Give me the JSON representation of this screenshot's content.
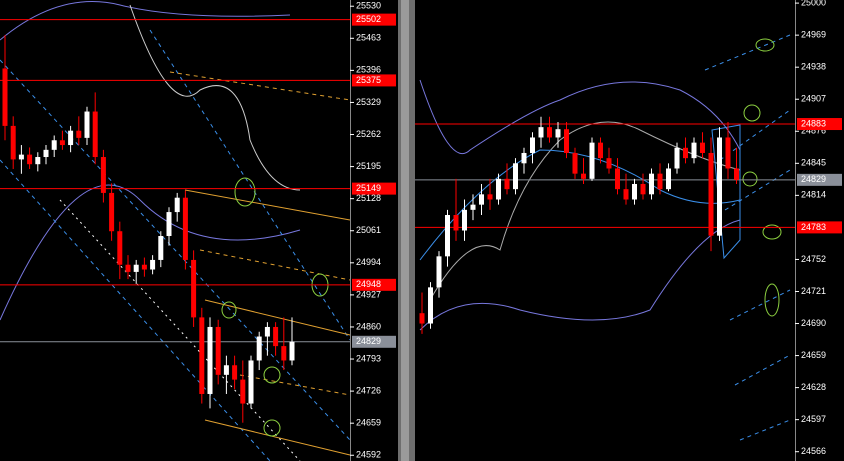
{
  "chart_data": [
    {
      "type": "candlestick",
      "up_color": "#ffffff",
      "down_color": "#ff0000",
      "ylim": [
        24580,
        25543
      ],
      "yticks": [
        25530,
        25463,
        25396,
        25329,
        25262,
        25195,
        25128,
        25061,
        24994,
        24927,
        24860,
        24793,
        24726,
        24659,
        24592
      ],
      "open": [
        25400,
        25280,
        25210,
        25220,
        25200,
        25215,
        25230,
        25250,
        25240,
        25270,
        25255,
        25310,
        25215,
        25140,
        25060,
        24990,
        24975,
        24990,
        24980,
        25000,
        25050,
        25100,
        25130,
        25000,
        24880,
        24720,
        24860,
        24760,
        24780,
        24750,
        24700,
        24790,
        24840,
        24860,
        24820,
        24790
      ],
      "high": [
        25470,
        25300,
        25240,
        25235,
        25225,
        25240,
        25260,
        25270,
        25280,
        25300,
        25320,
        25350,
        25230,
        25160,
        25080,
        25010,
        25000,
        25005,
        25010,
        25060,
        25110,
        25140,
        25145,
        25020,
        24900,
        24880,
        24875,
        24800,
        24800,
        24790,
        24800,
        24850,
        24870,
        24870,
        24880,
        24880
      ],
      "low": [
        25250,
        25190,
        25180,
        25190,
        25185,
        25200,
        25215,
        25230,
        25225,
        25240,
        25240,
        25200,
        25120,
        25040,
        24960,
        24960,
        24950,
        24965,
        24970,
        24985,
        25030,
        25080,
        24980,
        24860,
        24700,
        24690,
        24740,
        24720,
        24730,
        24660,
        24690,
        24770,
        24800,
        24800,
        24770,
        24780
      ],
      "close": [
        25280,
        25210,
        25220,
        25200,
        25215,
        25230,
        25250,
        25240,
        25270,
        25255,
        25310,
        25215,
        25140,
        25060,
        24990,
        24975,
        24990,
        24980,
        25000,
        25050,
        25100,
        25130,
        25000,
        24880,
        24720,
        24860,
        24760,
        24780,
        24750,
        24700,
        24790,
        24840,
        24860,
        24820,
        24790,
        24829
      ],
      "levels": [
        {
          "value": 25502,
          "color": "#ff0000"
        },
        {
          "value": 25375,
          "color": "#ff0000"
        },
        {
          "value": 25149,
          "color": "#ff0000"
        },
        {
          "value": 24948,
          "color": "#ff0000"
        },
        {
          "value": 24829,
          "color": "#8a8f99"
        }
      ]
    },
    {
      "type": "candlestick",
      "up_color": "#ffffff",
      "down_color": "#ff0000",
      "ylim": [
        24557,
        25003
      ],
      "yticks": [
        25000,
        24969,
        24938,
        24907,
        24876,
        24845,
        24814,
        24752,
        24721,
        24690,
        24659,
        24628,
        24597,
        24566
      ],
      "open": [
        24700,
        24690,
        24725,
        24755,
        24795,
        24780,
        24800,
        24805,
        24815,
        24810,
        24830,
        24820,
        24845,
        24855,
        24870,
        24880,
        24870,
        24878,
        24855,
        24835,
        24830,
        24865,
        24850,
        24840,
        24820,
        24810,
        24825,
        24815,
        24835,
        24820,
        24840,
        24860,
        24850,
        24865,
        24855,
        24775,
        24870,
        24840
      ],
      "high": [
        24720,
        24730,
        24760,
        24800,
        24830,
        24810,
        24815,
        24825,
        24830,
        24835,
        24845,
        24850,
        24860,
        24875,
        24890,
        24890,
        24885,
        24885,
        24860,
        24850,
        24870,
        24870,
        24860,
        24850,
        24835,
        24830,
        24835,
        24840,
        24845,
        24845,
        24865,
        24870,
        24870,
        24875,
        24870,
        24880,
        24885,
        24860
      ],
      "low": [
        24680,
        24685,
        24715,
        24745,
        24770,
        24770,
        24790,
        24795,
        24800,
        24805,
        24815,
        24815,
        24835,
        24845,
        24860,
        24865,
        24860,
        24850,
        24830,
        24825,
        24828,
        24845,
        24835,
        24815,
        24805,
        24805,
        24810,
        24810,
        24815,
        24818,
        24835,
        24845,
        24845,
        24850,
        24760,
        24770,
        24830,
        24825
      ],
      "close": [
        24690,
        24725,
        24755,
        24795,
        24780,
        24800,
        24805,
        24815,
        24810,
        24830,
        24820,
        24845,
        24855,
        24870,
        24880,
        24870,
        24878,
        24855,
        24835,
        24830,
        24865,
        24850,
        24840,
        24820,
        24810,
        24825,
        24815,
        24835,
        24820,
        24840,
        24860,
        24850,
        24865,
        24855,
        24775,
        24870,
        24840,
        24829
      ],
      "levels": [
        {
          "value": 24883,
          "color": "#ff0000"
        },
        {
          "value": 24829,
          "color": "#8a8f99"
        },
        {
          "value": 24783,
          "color": "#ff0000"
        }
      ]
    }
  ]
}
